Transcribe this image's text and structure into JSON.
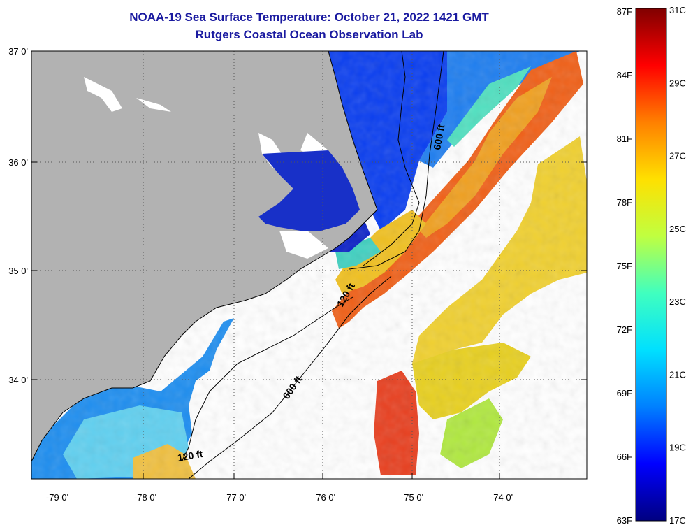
{
  "title": {
    "line1": "NOAA-19 Sea Surface Temperature:  October 21, 2022 1421 GMT",
    "line2": "Rutgers Coastal Ocean Observation Lab"
  },
  "map": {
    "lon_range": [
      -79.3,
      -73.0
    ],
    "lat_range": [
      33.1,
      37.0
    ],
    "lon_ticks": [
      "-79 0'",
      "-78 0'",
      "-77 0'",
      "-76 0'",
      "-75 0'",
      "-74 0'"
    ],
    "lat_ticks": [
      "37 0'",
      "36 0'",
      "35 0'",
      "34 0'"
    ],
    "grid": true,
    "land_color": "#b2b2b2",
    "no_data_color": "#ffffff",
    "contours": [
      {
        "depth_label": "120 ft",
        "label_positions": [
          "near 35.1N -75.7W",
          "near 33.3N -77.5W"
        ]
      },
      {
        "depth_label": "600 ft",
        "label_positions": [
          "near 36.2N -74.8W",
          "near 34.0N -76.3W"
        ]
      }
    ]
  },
  "colorbar": {
    "fahrenheit": [
      "87F",
      "84F",
      "81F",
      "78F",
      "75F",
      "72F",
      "69F",
      "66F",
      "63F"
    ],
    "celsius": [
      "31C",
      "29C",
      "27C",
      "25C",
      "23C",
      "21C",
      "19C",
      "17C"
    ],
    "range_c": [
      17,
      31
    ],
    "colors": [
      "#000080",
      "#0000ff",
      "#0080ff",
      "#00e0ff",
      "#40ffbf",
      "#c0ff40",
      "#ffe000",
      "#ff8000",
      "#ff0000",
      "#800000"
    ]
  }
}
